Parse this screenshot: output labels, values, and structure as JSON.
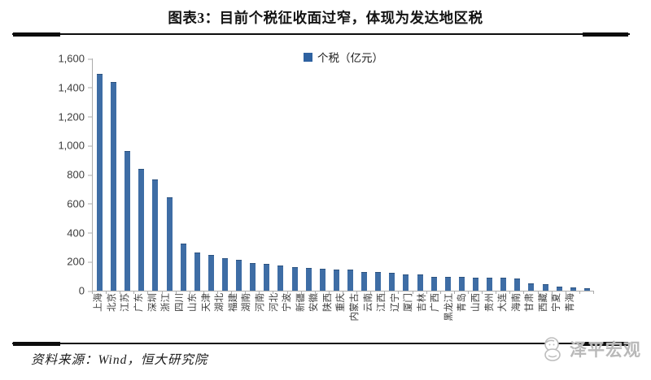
{
  "page": {
    "title": "图表3：目前个税征收面过窄，体现为发达地区税",
    "source_note": "资料来源：Wind，恒大研究院",
    "watermark": "泽平宏观"
  },
  "chart_data": {
    "type": "bar",
    "title": "图表3：目前个税征收面过窄，体现为发达地区税",
    "legend_label": "个税（亿元）",
    "legend_position": "top-center",
    "bar_color": "#3E6DA5",
    "axis_color": "#ABABAB",
    "grid": false,
    "ylim": [
      0,
      1600
    ],
    "ytick_step": 200,
    "ytick_labels": [
      "0",
      "200",
      "400",
      "600",
      "800",
      "1,000",
      "1,200",
      "1,400",
      "1,600"
    ],
    "xlabel": "",
    "ylabel": "",
    "categories": [
      "上海",
      "北京",
      "江苏",
      "广东",
      "深圳",
      "浙江",
      "四川",
      "山东",
      "天津",
      "湖北",
      "福建",
      "湖南",
      "河南",
      "河北",
      "宁波",
      "新疆",
      "安徽",
      "陕西",
      "重庆",
      "内蒙古",
      "云南",
      "江西",
      "辽宁",
      "厦门",
      "吉林",
      "广西",
      "黑龙江",
      "青岛",
      "山西",
      "贵州",
      "大连",
      "海南",
      "甘肃",
      "西藏",
      "宁夏",
      "青海"
    ],
    "values": [
      1490,
      1430,
      955,
      835,
      760,
      640,
      320,
      260,
      240,
      220,
      205,
      185,
      180,
      170,
      155,
      150,
      145,
      142,
      140,
      125,
      122,
      118,
      108,
      105,
      92,
      90,
      88,
      86,
      85,
      84,
      80,
      46,
      42,
      25,
      17,
      13
    ]
  }
}
